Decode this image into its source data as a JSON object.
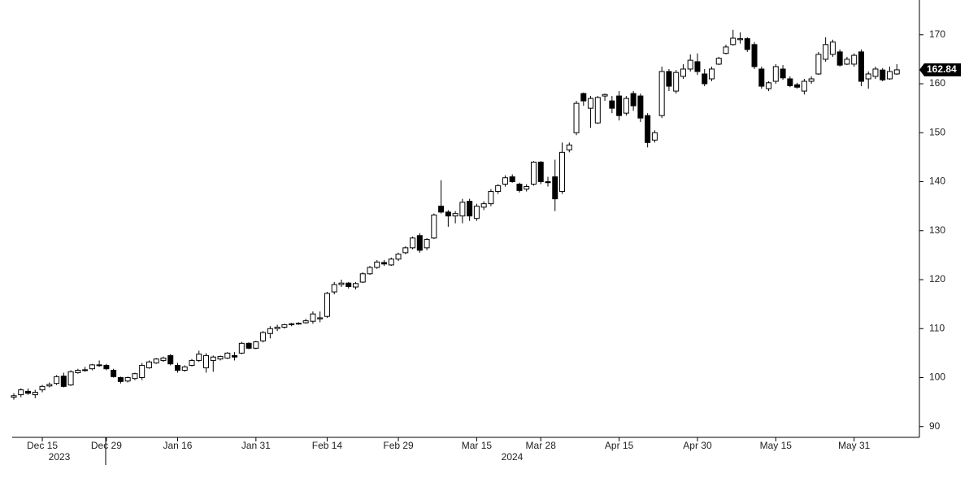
{
  "chart_data": {
    "type": "candlestick",
    "categories": [
      null,
      null,
      null,
      null,
      "Dec 15",
      null,
      null,
      null,
      null,
      null,
      null,
      null,
      null,
      "Dec 29",
      null,
      null,
      null,
      null,
      null,
      null,
      null,
      null,
      null,
      "Jan 16",
      null,
      null,
      null,
      null,
      null,
      null,
      null,
      null,
      null,
      null,
      "Jan 31",
      null,
      null,
      null,
      null,
      null,
      null,
      null,
      null,
      null,
      "Feb 14",
      null,
      null,
      null,
      null,
      null,
      null,
      null,
      null,
      null,
      "Feb 29",
      null,
      null,
      null,
      null,
      null,
      null,
      null,
      null,
      null,
      null,
      "Mar 15",
      null,
      null,
      null,
      null,
      null,
      null,
      null,
      null,
      "Mar 28",
      null,
      null,
      null,
      null,
      null,
      null,
      null,
      null,
      null,
      null,
      "Apr 15",
      null,
      null,
      null,
      null,
      null,
      null,
      null,
      null,
      null,
      null,
      "Apr 30",
      null,
      null,
      null,
      null,
      null,
      null,
      null,
      null,
      null,
      null,
      "May 15",
      null,
      null,
      null,
      null,
      null,
      null,
      null,
      null,
      null,
      null,
      "May 31",
      null,
      null,
      null,
      null,
      null,
      null
    ],
    "year_labels": [
      "2023",
      "2024"
    ],
    "open": [
      96,
      96.5,
      97.2,
      96.5,
      97.5,
      98.3,
      98.8,
      100.3,
      98.5,
      101,
      101.5,
      101.8,
      102.5,
      102.5,
      101.5,
      100,
      99.3,
      99.8,
      100,
      102,
      103,
      103.5,
      104.5,
      102.5,
      101.5,
      102.5,
      103.5,
      102,
      103.5,
      103.8,
      104,
      104.5,
      105,
      107,
      106,
      107.5,
      109,
      110,
      110.3,
      110.8,
      111,
      111.2,
      111.5,
      112,
      112.5,
      117.5,
      119,
      119.3,
      118.5,
      119.5,
      121.2,
      122.5,
      123.5,
      123,
      124.2,
      125.5,
      126.5,
      129,
      126.5,
      128.5,
      135,
      133.8,
      133,
      133,
      136,
      132.5,
      134.8,
      135.5,
      138,
      139.5,
      141,
      139.5,
      138.5,
      139.5,
      144,
      140,
      141,
      138,
      146.5,
      150,
      158,
      155,
      152,
      157.5,
      156.5,
      157.5,
      154,
      158,
      157.5,
      153.5,
      148.5,
      153.5,
      162.5,
      158.5,
      161.5,
      163,
      164.5,
      162,
      161,
      164,
      166.2,
      168,
      169,
      169.2,
      168,
      163,
      159,
      160.5,
      163,
      161,
      159.8,
      158.5,
      160.5,
      162,
      165,
      166,
      166.5,
      164,
      164,
      166.5,
      161,
      161.5,
      162.8,
      161,
      162
    ],
    "high": [
      96.8,
      97.8,
      97.8,
      97.5,
      98.5,
      99,
      100.5,
      101,
      101.5,
      101.8,
      102.2,
      102.8,
      103.5,
      102.8,
      101.8,
      100.2,
      100.2,
      101,
      103,
      103.5,
      104,
      104.3,
      104.8,
      103,
      102.5,
      103.8,
      105.5,
      105,
      104.5,
      104.5,
      105.2,
      105.2,
      107.3,
      107.2,
      107.5,
      109.5,
      110.5,
      110.8,
      111,
      111.2,
      111.3,
      112,
      113.5,
      113.5,
      117.5,
      119.5,
      120,
      119.5,
      119.5,
      121.5,
      122.8,
      124,
      124,
      124.5,
      125.5,
      126.8,
      128.8,
      129.5,
      128.5,
      133.5,
      140.3,
      134.2,
      134,
      136.5,
      136.5,
      135.5,
      136,
      138.5,
      139.5,
      141.3,
      141.5,
      139.8,
      139.5,
      144.2,
      144.2,
      141,
      144.5,
      148,
      148,
      156.5,
      158.2,
      157.5,
      157.5,
      158,
      157.5,
      158.5,
      157.5,
      158.5,
      158,
      154,
      150.5,
      163.5,
      163,
      162.8,
      164,
      166,
      166.2,
      163,
      163.5,
      165.5,
      168,
      171,
      170.5,
      169.5,
      168.5,
      163.5,
      160.5,
      164,
      163.8,
      161.5,
      160.2,
      161,
      161.5,
      166.5,
      169.5,
      169,
      167,
      165.5,
      166.2,
      167,
      162.5,
      163.5,
      163.2,
      163.5,
      164
    ],
    "low": [
      95.5,
      96,
      96.5,
      95.8,
      97,
      98,
      98.5,
      98,
      98.3,
      100.8,
      101.2,
      101.5,
      102.2,
      101.5,
      100,
      98.8,
      99,
      99.5,
      99.5,
      101.8,
      102.8,
      103.2,
      102.5,
      101,
      101.2,
      102.3,
      103.2,
      101,
      101.2,
      103.5,
      103.8,
      103.5,
      104.8,
      105.8,
      105.8,
      107.2,
      108,
      109.5,
      110,
      110.5,
      110.8,
      111,
      111,
      111.3,
      112.2,
      117,
      118.5,
      118.2,
      118,
      119.3,
      121,
      122.2,
      122.8,
      122.8,
      123.8,
      125.2,
      126.2,
      125.5,
      126,
      128.3,
      133.5,
      130.8,
      131.5,
      131.5,
      132,
      132,
      134.2,
      135,
      137.5,
      139,
      139.8,
      137.8,
      138,
      139.2,
      139.5,
      139,
      134,
      137.5,
      146,
      149.5,
      155.5,
      151,
      151.8,
      156.5,
      154,
      152.5,
      153.5,
      154.5,
      152.2,
      147,
      148,
      153,
      158.5,
      158,
      161,
      162.5,
      161.8,
      159.5,
      160.5,
      163.8,
      166,
      167.8,
      168.2,
      166.5,
      163,
      159,
      158.5,
      160,
      160.8,
      159.3,
      159,
      157.8,
      160,
      161.8,
      164.5,
      165.5,
      163.5,
      163.8,
      163.5,
      159.5,
      159,
      161,
      160.5,
      160.8,
      161.8
    ],
    "close": [
      96.3,
      97.5,
      96.8,
      97,
      98.2,
      98.6,
      100.2,
      98.2,
      101.2,
      101.5,
      101.6,
      102.6,
      102.6,
      101.8,
      100.2,
      99.2,
      100,
      100.8,
      102.5,
      103.2,
      103.8,
      104,
      102.8,
      101.5,
      102.2,
      103.5,
      104.8,
      104.5,
      104.2,
      104.3,
      105,
      104.2,
      107,
      106,
      107.3,
      109.2,
      110,
      110.3,
      110.8,
      111,
      111.1,
      111.6,
      113,
      112.2,
      117.2,
      119,
      119.3,
      118.6,
      119.2,
      121.2,
      122.5,
      123.6,
      123.2,
      124.2,
      125.2,
      126.5,
      128.5,
      126,
      128.2,
      133.2,
      133.8,
      133,
      133.5,
      135.8,
      133,
      135,
      135.5,
      138,
      139.2,
      140.8,
      140,
      138.2,
      139,
      144,
      140,
      139.8,
      136.5,
      146,
      147.5,
      156,
      156.5,
      157,
      157.2,
      157.8,
      155,
      153.5,
      157,
      155.5,
      153,
      148,
      150,
      162.5,
      159.5,
      162.3,
      163,
      164.8,
      162.5,
      160,
      163,
      165.2,
      167.5,
      169.3,
      169.2,
      167,
      163.5,
      159.5,
      160.2,
      163.5,
      161.2,
      159.6,
      159.3,
      160.5,
      161,
      166,
      168,
      168.5,
      163.8,
      165,
      165.8,
      160.5,
      162,
      163,
      160.8,
      162.5,
      162.84
    ],
    "last_price": 162.84,
    "up_color": "#ffffff",
    "down_color": "#000000",
    "ylim": [
      87.8,
      177.1
    ],
    "yticks": [
      90,
      100,
      110,
      120,
      130,
      140,
      150,
      160,
      170
    ],
    "grid": false
  }
}
